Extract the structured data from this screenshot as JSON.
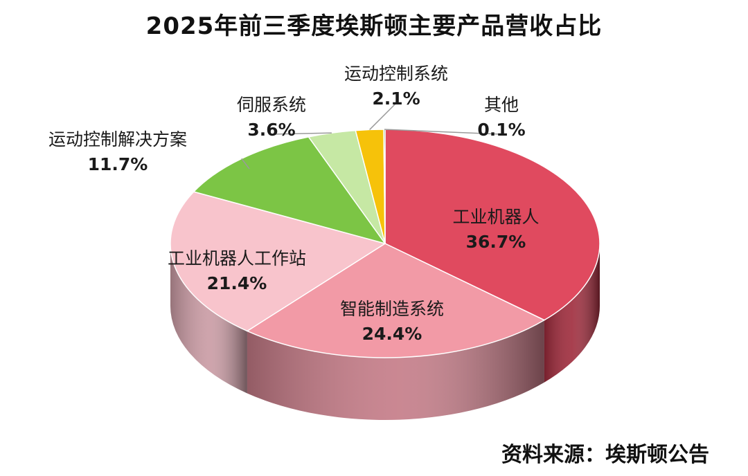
{
  "chart_data": {
    "type": "pie",
    "title": "2025年前三季度埃斯顿主要产品营收占比",
    "slices": [
      {
        "label": "工业机器人",
        "value": 36.7,
        "value_label": "36.7%",
        "color": "#e04a5f",
        "side_color": "#9e2a3b"
      },
      {
        "label": "智能制造系统",
        "value": 24.4,
        "value_label": "24.4%",
        "color": "#f29aa6",
        "side_color": "#c47a86"
      },
      {
        "label": "工业机器人工作站",
        "value": 21.4,
        "value_label": "21.4%",
        "color": "#f8c4cc",
        "side_color": "#c99aa3"
      },
      {
        "label": "运动控制解决方案",
        "value": 11.7,
        "value_label": "11.7%",
        "color": "#7cc545",
        "side_color": "#4f8a26"
      },
      {
        "label": "伺服系统",
        "value": 3.6,
        "value_label": "3.6%",
        "color": "#c6e8a4",
        "side_color": "#8fb873"
      },
      {
        "label": "运动控制系统",
        "value": 2.1,
        "value_label": "2.1%",
        "color": "#f6c20a",
        "side_color": "#b88d05"
      },
      {
        "label": "其他",
        "value": 0.1,
        "value_label": "0.1%",
        "color": "#3a7d2a",
        "side_color": "#24521a"
      }
    ],
    "legend": "none",
    "data_labels": true
  },
  "source_note": "资料来源：埃斯顿公告"
}
